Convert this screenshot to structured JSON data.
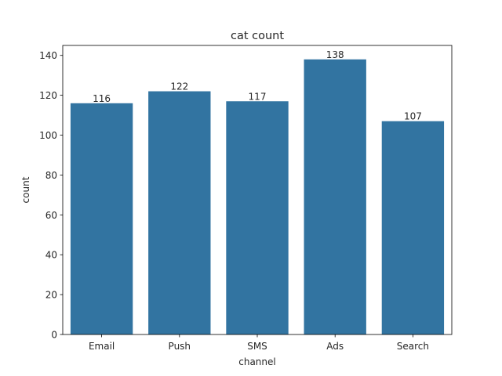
{
  "chart_data": {
    "type": "bar",
    "title": "cat count",
    "xlabel": "channel",
    "ylabel": "count",
    "categories": [
      "Email",
      "Push",
      "SMS",
      "Ads",
      "Search"
    ],
    "values": [
      116,
      122,
      117,
      138,
      107
    ],
    "data_labels": [
      "116",
      "122",
      "117",
      "138",
      "107"
    ],
    "ylim": [
      0,
      145
    ],
    "yticks": [
      0,
      20,
      40,
      60,
      80,
      100,
      120,
      140
    ],
    "grid": false,
    "bar_color": "#3274a1"
  }
}
